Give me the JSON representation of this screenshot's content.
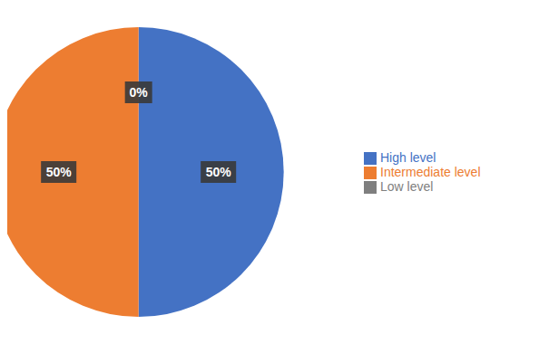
{
  "chart_data": {
    "type": "pie",
    "categories": [
      "High level",
      "Intermediate level",
      "Low level"
    ],
    "values": [
      50,
      50,
      0.0001
    ],
    "value_labels": [
      "50%",
      "50%",
      "0%"
    ],
    "colors": [
      "#4472C4",
      "#ED7D31",
      "#7F7F7F"
    ],
    "data_labels": true,
    "legend": "right"
  }
}
